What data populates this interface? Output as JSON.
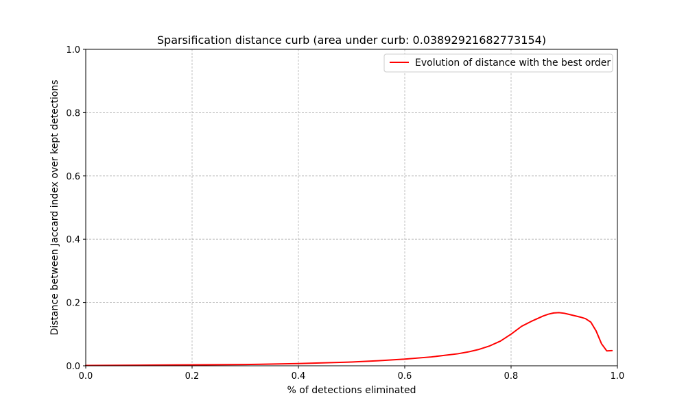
{
  "chart_data": {
    "type": "line",
    "title": "Sparsification distance curb (area under curb: 0.03892921682773154)",
    "xlabel": "% of detections eliminated",
    "ylabel": "Distance between Jaccard index over kept detections",
    "xlim": [
      0.0,
      1.0
    ],
    "ylim": [
      0.0,
      1.0
    ],
    "xticks": [
      0.0,
      0.2,
      0.4,
      0.6,
      0.8,
      1.0
    ],
    "xtick_labels": [
      "0.0",
      "0.2",
      "0.4",
      "0.6",
      "0.8",
      "1.0"
    ],
    "yticks": [
      0.0,
      0.2,
      0.4,
      0.6,
      0.8,
      1.0
    ],
    "ytick_labels": [
      "0.0",
      "0.2",
      "0.4",
      "0.6",
      "0.8",
      "1.0"
    ],
    "grid": true,
    "legend_position": "top-right",
    "series": [
      {
        "name": "Evolution of distance with the best order",
        "color": "#ff0000",
        "x": [
          0.0,
          0.1,
          0.2,
          0.3,
          0.4,
          0.5,
          0.55,
          0.6,
          0.65,
          0.7,
          0.72,
          0.74,
          0.76,
          0.78,
          0.8,
          0.82,
          0.84,
          0.86,
          0.87,
          0.88,
          0.89,
          0.9,
          0.91,
          0.92,
          0.93,
          0.94,
          0.95,
          0.96,
          0.97,
          0.98,
          0.99
        ],
        "y": [
          0.001,
          0.002,
          0.003,
          0.004,
          0.007,
          0.012,
          0.016,
          0.021,
          0.028,
          0.038,
          0.044,
          0.052,
          0.063,
          0.078,
          0.1,
          0.125,
          0.142,
          0.157,
          0.163,
          0.167,
          0.168,
          0.166,
          0.162,
          0.158,
          0.154,
          0.149,
          0.138,
          0.11,
          0.07,
          0.047,
          0.048
        ]
      }
    ]
  }
}
